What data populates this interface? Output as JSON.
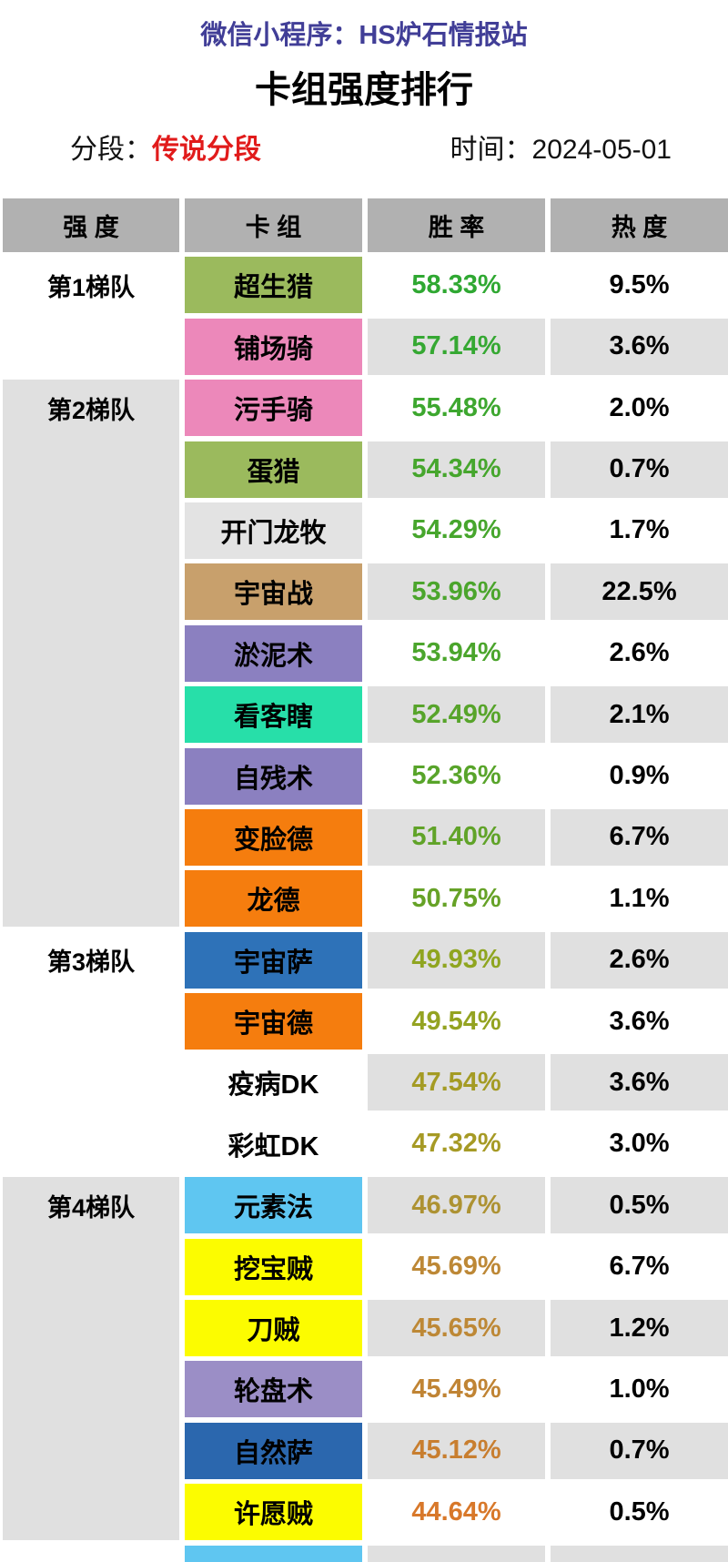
{
  "app_title": "微信小程序：HS炉石情报站",
  "page_title": "卡组强度排行",
  "meta": {
    "rank_label": "分段：",
    "rank_value": "传说分段",
    "rank_value_color": "#e11b1b",
    "time_label": "时间：",
    "time_value": "2024-05-01"
  },
  "colors": {
    "app_title_color": "#413e97",
    "header_bg": "#b1b1b1",
    "alt_row_bg": "#e0e0e0",
    "tier_block_bg": "#e0e0e0"
  },
  "table": {
    "headers": [
      "强 度",
      "卡 组",
      "胜 率",
      "热 度"
    ],
    "tiers": [
      {
        "label": "第1梯队",
        "shaded": false,
        "rows": [
          {
            "deck": "超生猎",
            "deck_color": "#9bba5d",
            "win": "58.33%",
            "win_color": "#2fa832",
            "heat": "9.5%"
          },
          {
            "deck": "铺场骑",
            "deck_color": "#ec88ba",
            "win": "57.14%",
            "win_color": "#35a832",
            "heat": "3.6%"
          }
        ]
      },
      {
        "label": "第2梯队",
        "shaded": true,
        "rows": [
          {
            "deck": "污手骑",
            "deck_color": "#ec88ba",
            "win": "55.48%",
            "win_color": "#3da72f",
            "heat": "2.0%"
          },
          {
            "deck": "蛋猎",
            "deck_color": "#9bba5d",
            "win": "54.34%",
            "win_color": "#46a62d",
            "heat": "0.7%"
          },
          {
            "deck": "开门龙牧",
            "deck_color": "#e3e3e3",
            "win": "54.29%",
            "win_color": "#47a62d",
            "heat": "1.7%"
          },
          {
            "deck": "宇宙战",
            "deck_color": "#c8a06c",
            "win": "53.96%",
            "win_color": "#4ba52c",
            "heat": "22.5%"
          },
          {
            "deck": "淤泥术",
            "deck_color": "#8b80c0",
            "win": "53.94%",
            "win_color": "#4ba52c",
            "heat": "2.6%"
          },
          {
            "deck": "看客瞎",
            "deck_color": "#27dfa9",
            "win": "52.49%",
            "win_color": "#57a42a",
            "heat": "2.1%"
          },
          {
            "deck": "自残术",
            "deck_color": "#8b80c0",
            "win": "52.36%",
            "win_color": "#58a42a",
            "heat": "0.9%"
          },
          {
            "deck": "变脸德",
            "deck_color": "#f57d0e",
            "win": "51.40%",
            "win_color": "#60a328",
            "heat": "6.7%"
          },
          {
            "deck": "龙德",
            "deck_color": "#f57d0e",
            "win": "50.75%",
            "win_color": "#66a227",
            "heat": "1.1%"
          }
        ]
      },
      {
        "label": "第3梯队",
        "shaded": false,
        "rows": [
          {
            "deck": "宇宙萨",
            "deck_color": "#2e72b8",
            "win": "49.93%",
            "win_color": "#8fa520",
            "heat": "2.6%"
          },
          {
            "deck": "宇宙德",
            "deck_color": "#f57d0e",
            "win": "49.54%",
            "win_color": "#94a321",
            "heat": "3.6%"
          },
          {
            "deck": "疫病DK",
            "deck_color": "#ffffff",
            "win": "47.54%",
            "win_color": "#a49b24",
            "heat": "3.6%"
          },
          {
            "deck": "彩虹DK",
            "deck_color": "#ffffff",
            "win": "47.32%",
            "win_color": "#a69a25",
            "heat": "3.0%"
          }
        ]
      },
      {
        "label": "第4梯队",
        "shaded": true,
        "rows": [
          {
            "deck": "元素法",
            "deck_color": "#5fc6f1",
            "win": "46.97%",
            "win_color": "#ad9232",
            "heat": "0.5%"
          },
          {
            "deck": "挖宝贼",
            "deck_color": "#fcfc00",
            "win": "45.69%",
            "win_color": "#bd8836",
            "heat": "6.7%"
          },
          {
            "deck": "刀贼",
            "deck_color": "#fcfc00",
            "win": "45.65%",
            "win_color": "#bd8836",
            "heat": "1.2%"
          },
          {
            "deck": "轮盘术",
            "deck_color": "#9b8ec6",
            "win": "45.49%",
            "win_color": "#c08434",
            "heat": "1.0%"
          },
          {
            "deck": "自然萨",
            "deck_color": "#2b67ae",
            "win": "45.12%",
            "win_color": "#c87e2f",
            "heat": "0.7%"
          },
          {
            "deck": "许愿贼",
            "deck_color": "#fcfc00",
            "win": "44.64%",
            "win_color": "#d8782a",
            "heat": "0.5%"
          }
        ]
      }
    ],
    "partial_row": {
      "deck_color": "#5fc6f1"
    }
  }
}
